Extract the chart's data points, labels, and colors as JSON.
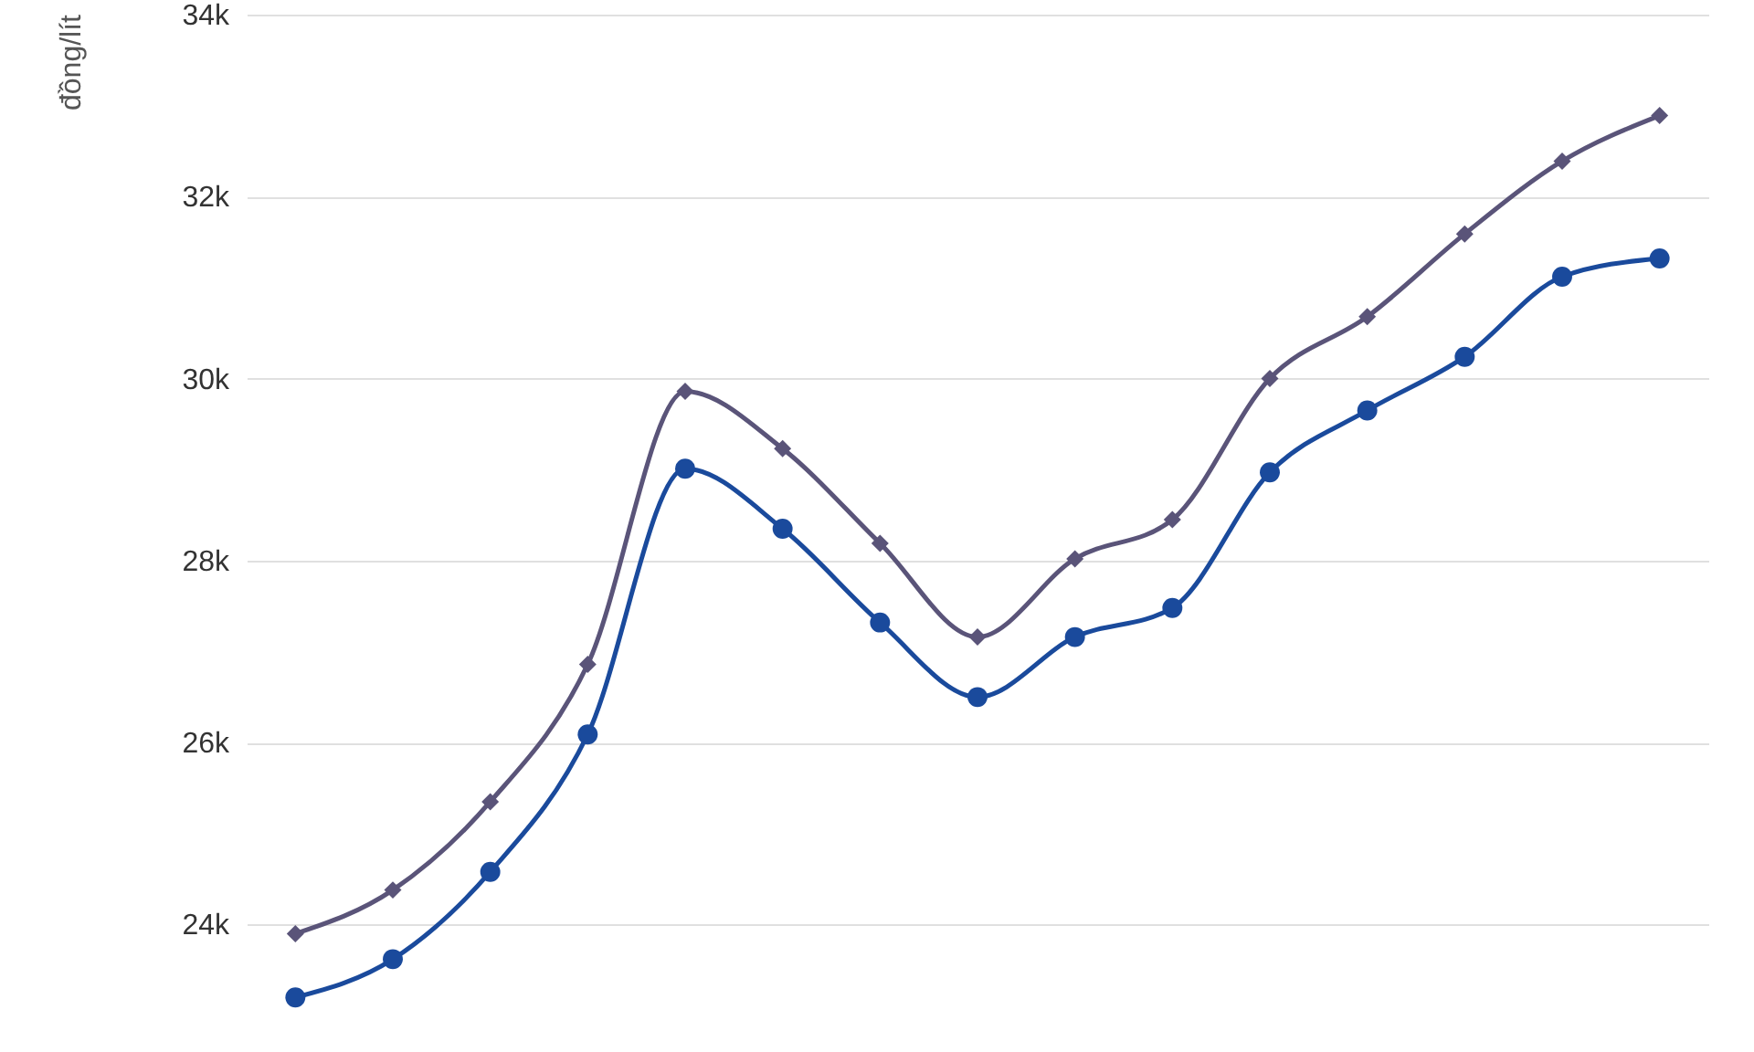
{
  "chart_data": {
    "type": "line",
    "ylabel": "đồng/lít",
    "categories": [
      null,
      null,
      null,
      null,
      null,
      null,
      null,
      null,
      null,
      null,
      null,
      null,
      null,
      null,
      null
    ],
    "series": [
      {
        "color": "#5a5479",
        "marker": "diamond",
        "values": [
          23900,
          24380,
          25350,
          26860,
          29860,
          29230,
          28190,
          27160,
          28020,
          28450,
          30000,
          30680,
          31590,
          32390,
          32890
        ]
      },
      {
        "color": "#1a4a9c",
        "marker": "circle",
        "values": [
          23200,
          23620,
          24580,
          26090,
          29010,
          28350,
          27320,
          26500,
          27160,
          27480,
          28970,
          29650,
          30240,
          31120,
          31320
        ]
      }
    ],
    "ylim": [
      22600,
      34000
    ],
    "yticks": [
      {
        "value": 24000,
        "label": "24k"
      },
      {
        "value": 26000,
        "label": "26k"
      },
      {
        "value": 28000,
        "label": "28k"
      },
      {
        "value": 30000,
        "label": "30k"
      },
      {
        "value": 32000,
        "label": "32k"
      },
      {
        "value": 34000,
        "label": "34k"
      }
    ],
    "grid": "y",
    "tick_labels": "y",
    "line_style": "solid"
  }
}
